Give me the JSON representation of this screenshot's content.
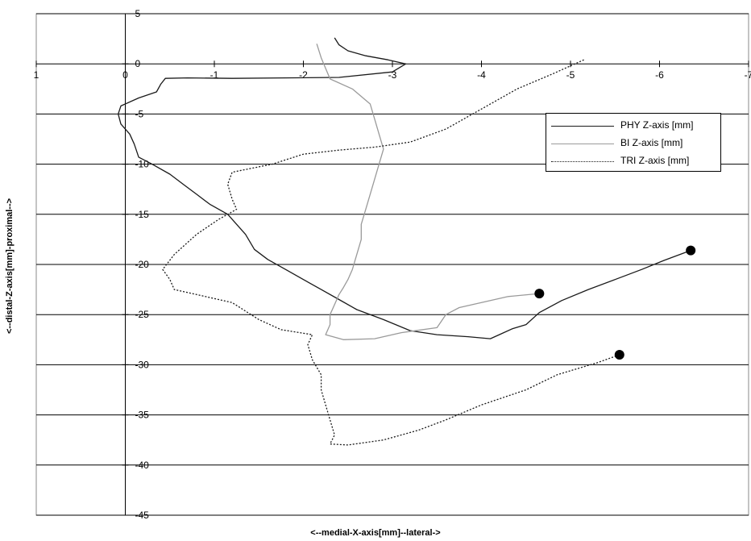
{
  "chart_data": {
    "type": "line",
    "title": "",
    "xlabel": "<--medial-X-axis[mm]--lateral->",
    "ylabel": "<--distal-Z-axis[mm]-proximal-->",
    "xlim": [
      1,
      -7
    ],
    "ylim": [
      -45,
      5
    ],
    "x_ticks": [
      "1",
      "0",
      "-1",
      "-2",
      "-3",
      "-4",
      "-5",
      "-6",
      "-7"
    ],
    "y_ticks": [
      "5",
      "0",
      "-5",
      "-10",
      "-15",
      "-20",
      "-25",
      "-30",
      "-35",
      "-40",
      "-45"
    ],
    "grid": "horizontal",
    "legend_position": "right",
    "colors": {
      "PHY": "#1a1a1a",
      "BI": "#9a9a9a",
      "TRI": "#1a1a1a"
    },
    "series": [
      {
        "name": "PHY Z-axis [mm]",
        "style": "solid",
        "color": "#1a1a1a",
        "end_marker": [
          -6.35,
          -18.6
        ],
        "points": [
          [
            -2.35,
            2.6
          ],
          [
            -2.4,
            1.9
          ],
          [
            -2.5,
            1.3
          ],
          [
            -2.7,
            0.8
          ],
          [
            -2.95,
            0.4
          ],
          [
            -3.15,
            0.0
          ],
          [
            -3.0,
            -0.8
          ],
          [
            -2.4,
            -1.35
          ],
          [
            -1.8,
            -1.4
          ],
          [
            -1.2,
            -1.45
          ],
          [
            -0.7,
            -1.4
          ],
          [
            -0.45,
            -1.45
          ],
          [
            -0.4,
            -2.0
          ],
          [
            -0.35,
            -2.8
          ],
          [
            -0.15,
            -3.4
          ],
          [
            0.05,
            -4.2
          ],
          [
            0.08,
            -5.0
          ],
          [
            0.05,
            -6.0
          ],
          [
            -0.05,
            -7.0
          ],
          [
            -0.1,
            -8.0
          ],
          [
            -0.15,
            -9.3
          ],
          [
            -0.3,
            -10.0
          ],
          [
            -0.5,
            -11.0
          ],
          [
            -0.65,
            -12.0
          ],
          [
            -0.8,
            -13.0
          ],
          [
            -0.95,
            -14.0
          ],
          [
            -1.15,
            -15.0
          ],
          [
            -1.25,
            -16.0
          ],
          [
            -1.35,
            -17.0
          ],
          [
            -1.45,
            -18.5
          ],
          [
            -1.6,
            -19.5
          ],
          [
            -1.8,
            -20.5
          ],
          [
            -2.0,
            -21.5
          ],
          [
            -2.2,
            -22.5
          ],
          [
            -2.4,
            -23.5
          ],
          [
            -2.6,
            -24.5
          ],
          [
            -2.9,
            -25.5
          ],
          [
            -3.2,
            -26.6
          ],
          [
            -3.5,
            -27.0
          ],
          [
            -3.85,
            -27.2
          ],
          [
            -4.1,
            -27.4
          ],
          [
            -4.2,
            -27.0
          ],
          [
            -4.35,
            -26.4
          ],
          [
            -4.5,
            -26.0
          ],
          [
            -4.65,
            -24.8
          ],
          [
            -4.9,
            -23.6
          ],
          [
            -5.2,
            -22.5
          ],
          [
            -5.5,
            -21.5
          ],
          [
            -5.8,
            -20.5
          ],
          [
            -6.05,
            -19.6
          ],
          [
            -6.35,
            -18.6
          ]
        ]
      },
      {
        "name": "BI Z-axis [mm]",
        "style": "solid",
        "color": "#9a9a9a",
        "end_marker": [
          -4.65,
          -22.9
        ],
        "points": [
          [
            -2.15,
            2.0
          ],
          [
            -2.2,
            0.6
          ],
          [
            -2.3,
            -1.5
          ],
          [
            -2.55,
            -2.5
          ],
          [
            -2.75,
            -4.0
          ],
          [
            -2.8,
            -5.5
          ],
          [
            -2.85,
            -7.0
          ],
          [
            -2.9,
            -8.5
          ],
          [
            -2.85,
            -10.0
          ],
          [
            -2.8,
            -11.5
          ],
          [
            -2.75,
            -13.0
          ],
          [
            -2.7,
            -14.5
          ],
          [
            -2.65,
            -16.0
          ],
          [
            -2.65,
            -17.5
          ],
          [
            -2.6,
            -19.0
          ],
          [
            -2.55,
            -20.5
          ],
          [
            -2.5,
            -21.5
          ],
          [
            -2.45,
            -22.3
          ],
          [
            -2.4,
            -23.0
          ],
          [
            -2.35,
            -24.0
          ],
          [
            -2.3,
            -25.0
          ],
          [
            -2.3,
            -26.0
          ],
          [
            -2.25,
            -27.0
          ],
          [
            -2.45,
            -27.5
          ],
          [
            -2.8,
            -27.4
          ],
          [
            -3.1,
            -26.8
          ],
          [
            -3.5,
            -26.3
          ],
          [
            -3.6,
            -25.0
          ],
          [
            -3.75,
            -24.3
          ],
          [
            -4.0,
            -23.8
          ],
          [
            -4.3,
            -23.2
          ],
          [
            -4.65,
            -22.9
          ]
        ]
      },
      {
        "name": "TRI Z-axis [mm]",
        "style": "dotted",
        "color": "#1a1a1a",
        "end_marker": [
          -5.55,
          -29.0
        ],
        "points": [
          [
            -5.15,
            0.4
          ],
          [
            -4.8,
            -1.0
          ],
          [
            -4.4,
            -2.5
          ],
          [
            -4.0,
            -4.5
          ],
          [
            -3.6,
            -6.5
          ],
          [
            -3.2,
            -7.8
          ],
          [
            -2.8,
            -8.3
          ],
          [
            -2.4,
            -8.6
          ],
          [
            -2.0,
            -9.0
          ],
          [
            -1.65,
            -10.0
          ],
          [
            -1.2,
            -10.8
          ],
          [
            -1.15,
            -12.0
          ],
          [
            -1.2,
            -13.5
          ],
          [
            -1.25,
            -14.5
          ],
          [
            -1.05,
            -15.5
          ],
          [
            -0.8,
            -17.0
          ],
          [
            -0.55,
            -19.0
          ],
          [
            -0.42,
            -20.5
          ],
          [
            -0.5,
            -21.5
          ],
          [
            -0.55,
            -22.5
          ],
          [
            -0.8,
            -23.0
          ],
          [
            -1.2,
            -23.8
          ],
          [
            -1.5,
            -25.5
          ],
          [
            -1.75,
            -26.5
          ],
          [
            -2.1,
            -27.0
          ],
          [
            -2.05,
            -28.0
          ],
          [
            -2.1,
            -29.5
          ],
          [
            -2.2,
            -31.0
          ],
          [
            -2.2,
            -32.5
          ],
          [
            -2.25,
            -34.0
          ],
          [
            -2.3,
            -35.5
          ],
          [
            -2.35,
            -37.0
          ],
          [
            -2.3,
            -37.9
          ],
          [
            -2.5,
            -38.0
          ],
          [
            -2.9,
            -37.5
          ],
          [
            -3.3,
            -36.5
          ],
          [
            -3.6,
            -35.5
          ],
          [
            -4.0,
            -34.0
          ],
          [
            -4.5,
            -32.5
          ],
          [
            -4.85,
            -31.0
          ],
          [
            -5.3,
            -29.8
          ],
          [
            -5.55,
            -29.0
          ]
        ]
      }
    ]
  }
}
